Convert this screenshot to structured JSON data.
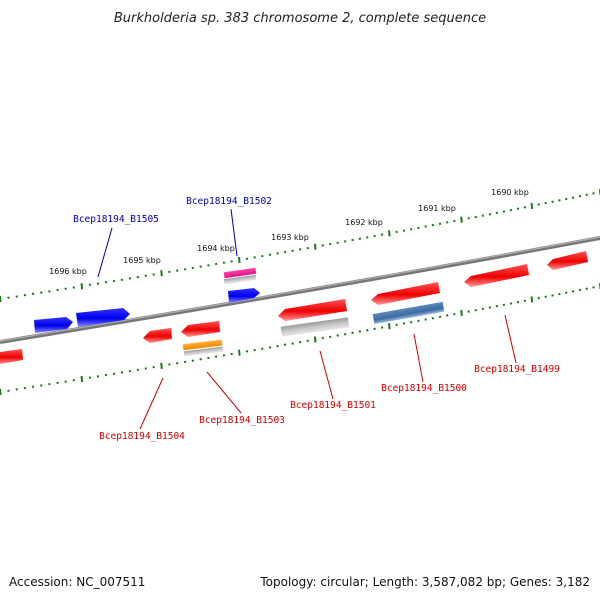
{
  "title": "Burkholderia sp. 383 chromosome 2, complete sequence",
  "footer": {
    "accession": "Accession: NC_007511",
    "summary": "Topology: circular; Length: 3,587,082 bp; Genes: 3,182"
  },
  "colors": {
    "backbone": "#808080",
    "ticks": "#1a7a1a",
    "forward_gene": "#0000ee",
    "reverse_gene": "#ee0000",
    "forward_label": "#0000aa",
    "reverse_label": "#cc0000"
  },
  "ticks": [
    {
      "label": "1696 kbp"
    },
    {
      "label": "1695 kbp"
    },
    {
      "label": "1694 kbp"
    },
    {
      "label": "1693 kbp"
    },
    {
      "label": "1692 kbp"
    },
    {
      "label": "1691 kbp"
    },
    {
      "label": "1690 kbp"
    }
  ],
  "genes": [
    {
      "label": "Bcep18194_B1505",
      "strand": "forward"
    },
    {
      "label": "Bcep18194_B1502",
      "strand": "forward"
    },
    {
      "label": "Bcep18194_B1504",
      "strand": "reverse"
    },
    {
      "label": "Bcep18194_B1503",
      "strand": "reverse"
    },
    {
      "label": "Bcep18194_B1501",
      "strand": "reverse"
    },
    {
      "label": "Bcep18194_B1500",
      "strand": "reverse"
    },
    {
      "label": "Bcep18194_B1499",
      "strand": "reverse"
    }
  ]
}
